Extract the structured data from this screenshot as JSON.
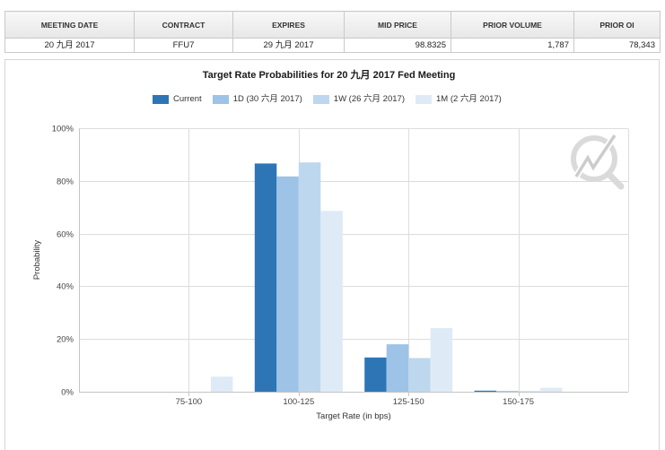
{
  "table": {
    "headers": [
      "MEETING DATE",
      "CONTRACT",
      "EXPIRES",
      "MID PRICE",
      "PRIOR VOLUME",
      "PRIOR OI"
    ],
    "row": {
      "meeting_date": "20 九月 2017",
      "contract": "FFU7",
      "expires": "29 九月 2017",
      "mid_price": "98.8325",
      "prior_volume": "1,787",
      "prior_oi": "78,343"
    }
  },
  "chart_data": {
    "type": "bar",
    "title": "Target Rate Probabilities for 20 九月 2017 Fed Meeting",
    "xlabel": "Target Rate (in bps)",
    "ylabel": "Probability",
    "categories": [
      "75-100",
      "100-125",
      "125-150",
      "150-175"
    ],
    "yticks": [
      "0%",
      "20%",
      "40%",
      "60%",
      "80%",
      "100%"
    ],
    "ylim": [
      0,
      100
    ],
    "grid": true,
    "legend_position": "top",
    "series": [
      {
        "name": "Current",
        "color": "#2e75b6",
        "values": [
          0,
          86.6,
          13.0,
          0.4
        ]
      },
      {
        "name": "1D (30 六月 2017)",
        "color": "#9dc3e6",
        "values": [
          0,
          81.7,
          18.0,
          0.3
        ]
      },
      {
        "name": "1W (26 六月 2017)",
        "color": "#bdd7ee",
        "values": [
          0,
          87.0,
          12.8,
          0.2
        ]
      },
      {
        "name": "1M (2 六月 2017)",
        "color": "#deebf7",
        "values": [
          5.7,
          68.6,
          24.2,
          1.5
        ]
      }
    ]
  },
  "icons": {
    "watermark": "logo-watermark-icon"
  }
}
